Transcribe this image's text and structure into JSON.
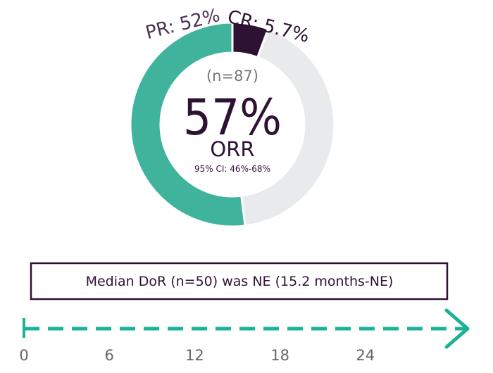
{
  "chart_data": {
    "type": "pie",
    "variant": "donut",
    "categories": [
      "PR",
      "CR",
      "Non-responders"
    ],
    "values": [
      52,
      5.7,
      42.3
    ],
    "slice_labels": [
      "PR: 52%",
      "CR: 5.7%",
      ""
    ],
    "colors": [
      "#3fb39c",
      "#2e1233",
      "#e9eaeb"
    ],
    "center": {
      "n_label": "(n=87)",
      "big_value": "57%",
      "metric": "ORR",
      "ci": "95% CI: 46%-68%"
    }
  },
  "dor_box": {
    "text": "Median DoR (n=50) was NE (15.2 months-NE)",
    "border_color": "#2e1233"
  },
  "timeline": {
    "ticks": [
      "0",
      "6",
      "12",
      "18",
      "24"
    ],
    "tick_values": [
      0,
      6,
      12,
      18,
      24
    ],
    "color": "#1ab394",
    "style": "dashed-arrow"
  }
}
